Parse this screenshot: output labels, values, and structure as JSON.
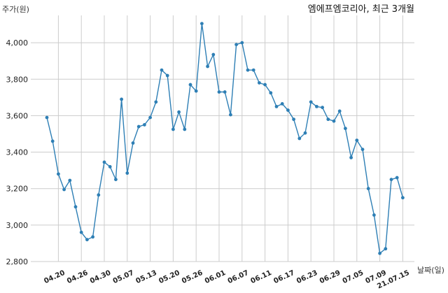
{
  "chart_data": {
    "type": "line",
    "title": "엠에프엠코리아, 최근 3개월",
    "ylabel": "주가(원)",
    "xlabel": "날짜(일)",
    "ylim": [
      2800,
      4150
    ],
    "yticks": [
      2800,
      3000,
      3200,
      3400,
      3600,
      3800,
      4000
    ],
    "ytick_labels": [
      "2,800",
      "3,000",
      "3,200",
      "3,400",
      "3,600",
      "3,800",
      "4,000"
    ],
    "xtick_labels": [
      "04.20",
      "04.26",
      "04.30",
      "05.07",
      "05.13",
      "05.20",
      "05.26",
      "06.01",
      "06.07",
      "06.11",
      "06.17",
      "06.23",
      "06.29",
      "07.05",
      "07.09",
      "21.07.15"
    ],
    "xtick_index": [
      2,
      6,
      10,
      14,
      18,
      22,
      26,
      30,
      34,
      38,
      42,
      46,
      50,
      54,
      58,
      62
    ],
    "grid": true,
    "line_color": "#2e7fb5",
    "series": [
      {
        "values": [
          3590,
          3460,
          3280,
          3195,
          3245,
          3100,
          2960,
          2920,
          2935,
          3165,
          3345,
          3320,
          3250,
          3690,
          3285,
          3450,
          3540,
          3550,
          3590,
          3675,
          3850,
          3820,
          3525,
          3620,
          3525,
          3770,
          3735,
          4105,
          3870,
          3935,
          3730,
          3730,
          3605,
          3990,
          4000,
          3850,
          3850,
          3780,
          3770,
          3725,
          3650,
          3665,
          3630,
          3580,
          3475,
          3505,
          3675,
          3650,
          3645,
          3580,
          3570,
          3625,
          3530,
          3370,
          3465,
          3415,
          3200,
          3055,
          2845,
          2870,
          3250,
          3260,
          3150
        ]
      }
    ]
  }
}
